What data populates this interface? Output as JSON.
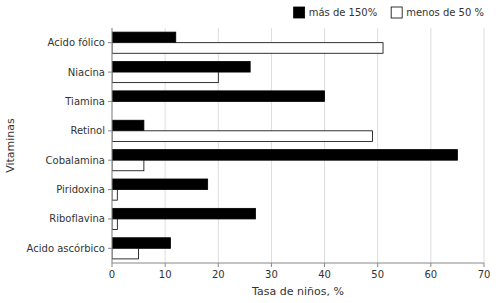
{
  "chart_data": {
    "type": "bar",
    "orientation": "horizontal",
    "categories": [
      "Acido fólico",
      "Niacina",
      "Tiamina",
      "Retinol",
      "Cobalamina",
      "Piridoxina",
      "Riboflavina",
      "Acido ascórbico"
    ],
    "series": [
      {
        "name": "más de 150%",
        "color": "#000000",
        "values": [
          12,
          26,
          40,
          6,
          65,
          18,
          27,
          11
        ]
      },
      {
        "name": "menos de 50 %",
        "color": "#ffffff",
        "values": [
          51,
          20,
          0,
          49,
          6,
          1,
          1,
          5
        ]
      }
    ],
    "xlabel": "Tasa de niños, %",
    "ylabel": "Vitaminas",
    "xlim": [
      0,
      70
    ],
    "xticks": [
      0,
      10,
      20,
      30,
      40,
      50,
      60,
      70
    ],
    "grid": true,
    "legend": "upper right"
  }
}
